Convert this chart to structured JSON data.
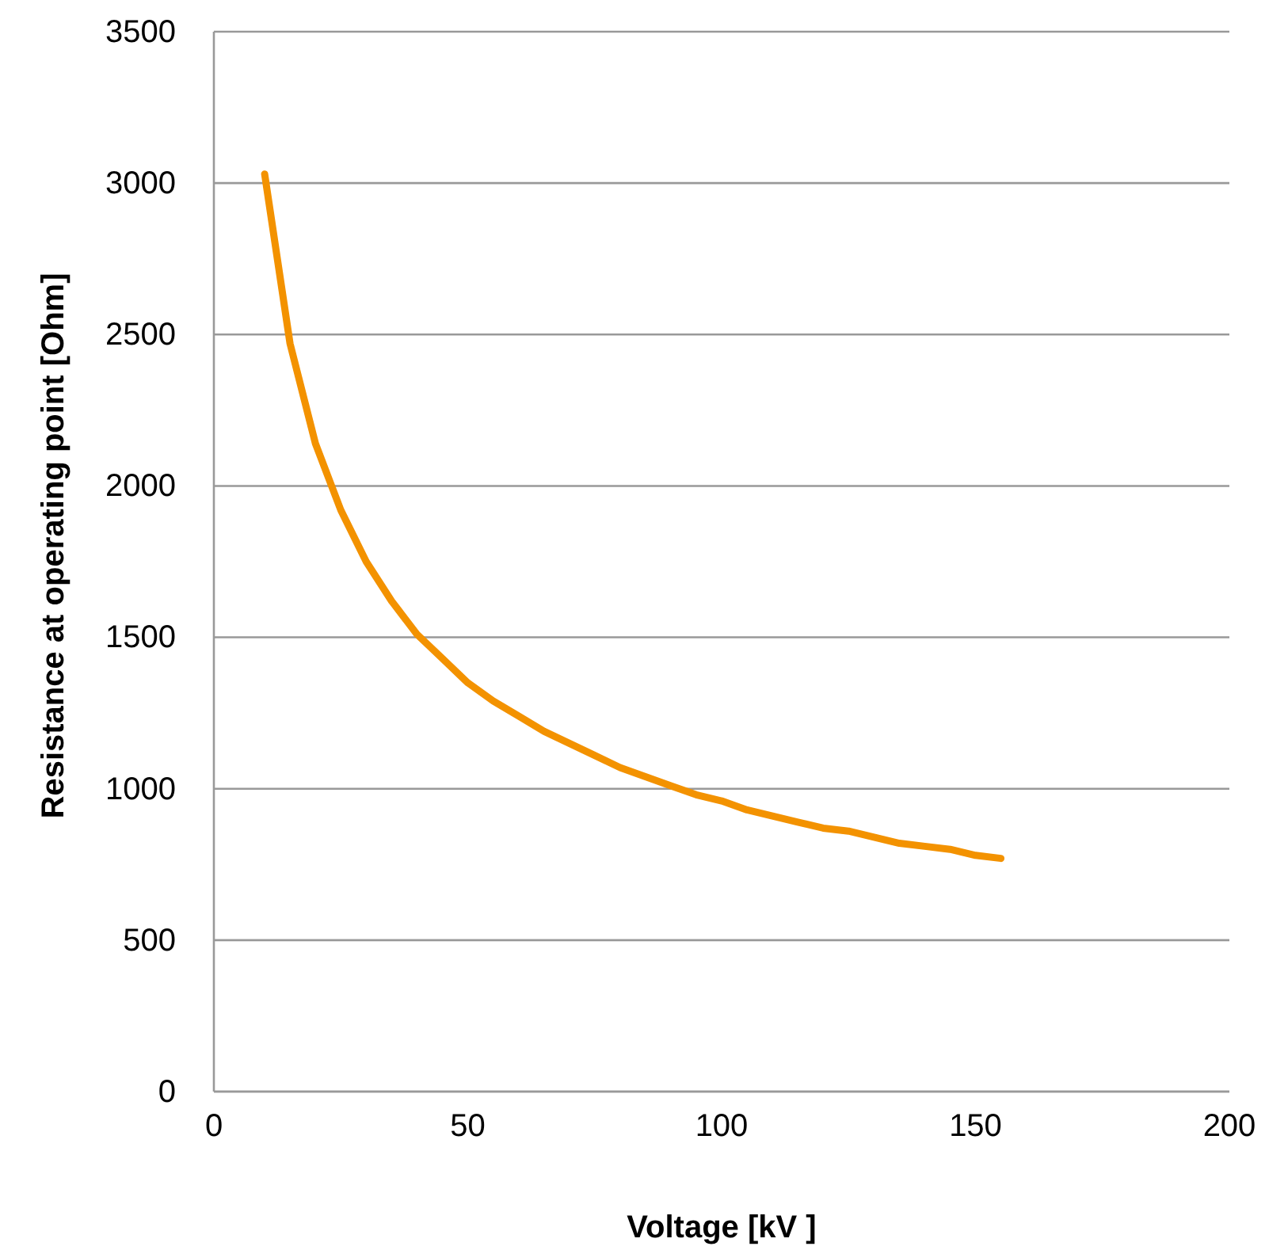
{
  "chart_data": {
    "type": "line",
    "xlabel": "Voltage [kV ]",
    "ylabel": "Resistance at operating point [Ohm]",
    "x": [
      10,
      15,
      20,
      25,
      30,
      35,
      40,
      45,
      50,
      55,
      60,
      65,
      70,
      75,
      80,
      85,
      90,
      95,
      100,
      105,
      110,
      115,
      120,
      125,
      130,
      135,
      140,
      145,
      150,
      155
    ],
    "series": [
      {
        "color": "#f39200",
        "values": [
          3030,
          2470,
          2140,
          1920,
          1750,
          1620,
          1510,
          1430,
          1350,
          1290,
          1240,
          1190,
          1150,
          1110,
          1070,
          1040,
          1010,
          980,
          960,
          930,
          910,
          890,
          870,
          860,
          840,
          820,
          810,
          800,
          780,
          770
        ]
      }
    ],
    "xlim": [
      0,
      200
    ],
    "xticks": [
      0,
      50,
      100,
      150,
      200
    ],
    "ylim": [
      0,
      3500
    ],
    "yticks": [
      0,
      500,
      1000,
      1500,
      2000,
      2500,
      3000,
      3500
    ],
    "grid": "y",
    "marker": "none",
    "line_style": "solid"
  }
}
